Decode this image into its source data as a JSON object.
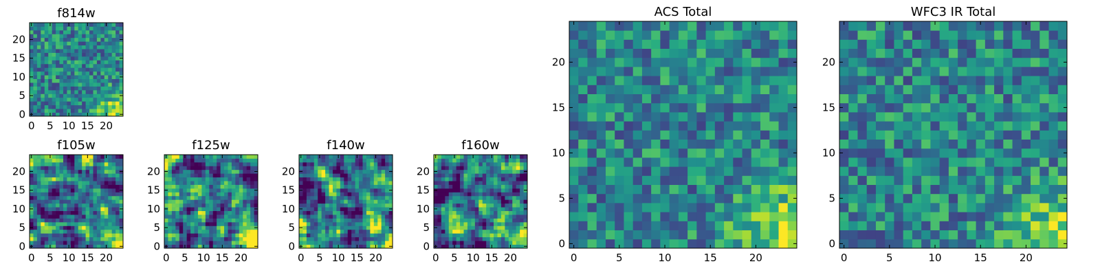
{
  "chart_data": [
    {
      "type": "heatmap",
      "title": "f814w",
      "xlabel": "",
      "ylabel": "",
      "grid_size": 25,
      "xlim": [
        -0.5,
        24.5
      ],
      "ylim": [
        -0.5,
        24.5
      ],
      "xticks": [
        0,
        5,
        10,
        15,
        20
      ],
      "yticks": [
        0,
        5,
        10,
        15,
        20
      ],
      "colormap": "viridis",
      "pattern": "noisy",
      "seed": 11,
      "corner_boost": 0.5
    },
    {
      "type": "heatmap",
      "title": "f105w",
      "xlabel": "",
      "ylabel": "",
      "grid_size": 25,
      "xlim": [
        -0.5,
        24.5
      ],
      "ylim": [
        -0.5,
        24.5
      ],
      "xticks": [
        0,
        5,
        10,
        15,
        20
      ],
      "yticks": [
        0,
        5,
        10,
        15,
        20
      ],
      "colormap": "viridis",
      "pattern": "smooth",
      "seed": 23,
      "corner_boost": 0.55
    },
    {
      "type": "heatmap",
      "title": "f125w",
      "xlabel": "",
      "ylabel": "",
      "grid_size": 25,
      "xlim": [
        -0.5,
        24.5
      ],
      "ylim": [
        -0.5,
        24.5
      ],
      "xticks": [
        0,
        5,
        10,
        15,
        20
      ],
      "yticks": [
        0,
        5,
        10,
        15,
        20
      ],
      "colormap": "viridis",
      "pattern": "smooth",
      "seed": 37,
      "corner_boost": 0.65
    },
    {
      "type": "heatmap",
      "title": "f140w",
      "xlabel": "",
      "ylabel": "",
      "grid_size": 25,
      "xlim": [
        -0.5,
        24.5
      ],
      "ylim": [
        -0.5,
        24.5
      ],
      "xticks": [
        0,
        5,
        10,
        15,
        20
      ],
      "yticks": [
        0,
        5,
        10,
        15,
        20
      ],
      "colormap": "viridis",
      "pattern": "smooth",
      "seed": 51,
      "corner_boost": 0.6
    },
    {
      "type": "heatmap",
      "title": "f160w",
      "xlabel": "",
      "ylabel": "",
      "grid_size": 25,
      "xlim": [
        -0.5,
        24.5
      ],
      "ylim": [
        -0.5,
        24.5
      ],
      "xticks": [
        0,
        5,
        10,
        15,
        20
      ],
      "yticks": [
        0,
        5,
        10,
        15,
        20
      ],
      "colormap": "viridis",
      "pattern": "smooth",
      "seed": 67,
      "corner_boost": 0.65
    },
    {
      "type": "heatmap",
      "title": "ACS Total",
      "xlabel": "",
      "ylabel": "",
      "grid_size": 25,
      "xlim": [
        -0.5,
        24.5
      ],
      "ylim": [
        -0.5,
        24.5
      ],
      "xticks": [
        0,
        5,
        10,
        15,
        20
      ],
      "yticks": [
        0,
        5,
        10,
        15,
        20
      ],
      "colormap": "viridis",
      "pattern": "noisy",
      "seed": 79,
      "corner_boost": 0.5
    },
    {
      "type": "heatmap",
      "title": "WFC3 IR Total",
      "xlabel": "",
      "ylabel": "",
      "grid_size": 25,
      "xlim": [
        -0.5,
        24.5
      ],
      "ylim": [
        -0.5,
        24.5
      ],
      "xticks": [
        0,
        5,
        10,
        15,
        20
      ],
      "yticks": [
        0,
        5,
        10,
        15,
        20
      ],
      "colormap": "viridis",
      "pattern": "noisy",
      "seed": 97,
      "corner_boost": 0.45
    }
  ]
}
